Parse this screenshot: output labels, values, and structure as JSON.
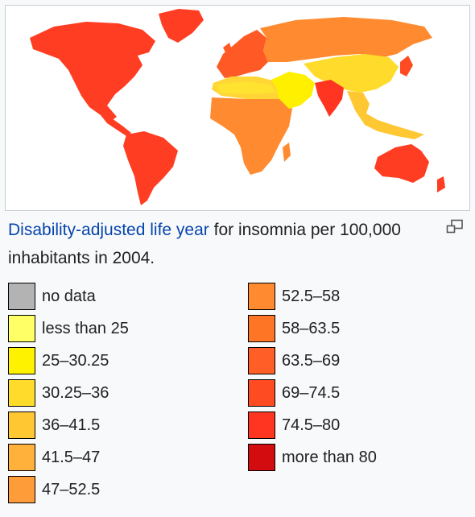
{
  "caption": {
    "link_text": "Disability-adjusted life year",
    "text": " for insomnia per 100,000 inhabitants in 2004."
  },
  "legend": {
    "left": [
      {
        "label": "no data",
        "color": "#b3b3b3"
      },
      {
        "label": "less than 25",
        "color": "#ffff66"
      },
      {
        "label": "25–30.25",
        "color": "#fff200"
      },
      {
        "label": "30.25–36",
        "color": "#ffdc2c"
      },
      {
        "label": "36–41.5",
        "color": "#ffc732"
      },
      {
        "label": "41.5–47",
        "color": "#ffb13b"
      },
      {
        "label": "47–52.5",
        "color": "#ff9c3a"
      }
    ],
    "right": [
      {
        "label": "52.5–58",
        "color": "#ff8a2f"
      },
      {
        "label": "58–63.5",
        "color": "#ff7526"
      },
      {
        "label": "63.5–69",
        "color": "#ff5f26"
      },
      {
        "label": "69–74.5",
        "color": "#ff4b22"
      },
      {
        "label": "74.5–80",
        "color": "#ff3521"
      },
      {
        "label": "more than 80",
        "color": "#d30c10"
      }
    ]
  },
  "map_colors": {
    "ocean": "#ffffff",
    "americas": "#ff3d22",
    "greenland": "#ff3d22",
    "europe": "#ff5a25",
    "russia": "#ff8a2f",
    "north_africa": "#ffd635",
    "sahara": "#ffe330",
    "africa": "#ff8a2f",
    "arabia": "#fff000",
    "china": "#ffdc2c",
    "india": "#ff3521",
    "southeast_asia": "#ffc732",
    "japan": "#ff4b22",
    "australia": "#ff3d22",
    "antarctica_edge": "#ff3d22"
  }
}
